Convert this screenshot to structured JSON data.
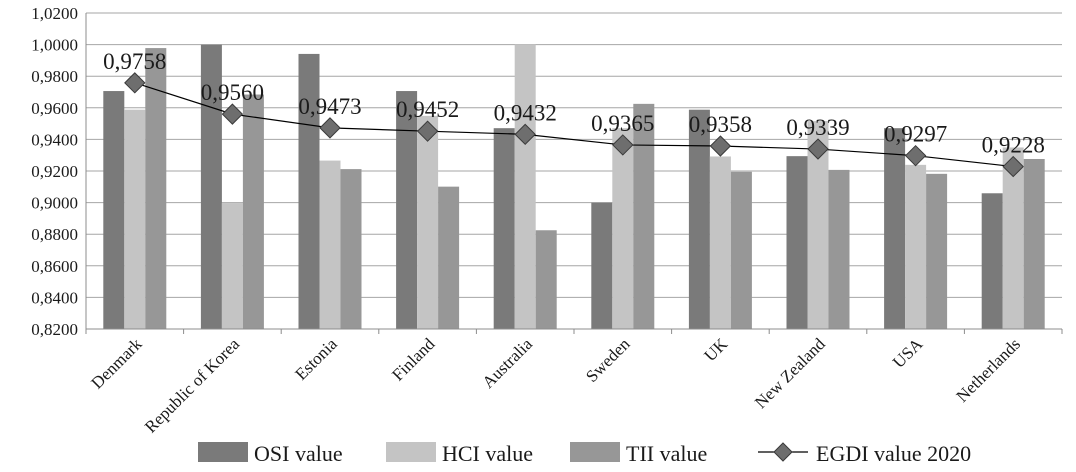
{
  "chart_data": {
    "type": "bar",
    "categories": [
      "Denmark",
      "Republic of Korea",
      "Estonia",
      "Finland",
      "Australia",
      "Sweden",
      "UK",
      "New Zealand",
      "USA",
      "Netherlands"
    ],
    "series": [
      {
        "name": "OSI value",
        "type": "bar",
        "color": "#7a7a7a",
        "values": [
          0.9706,
          1.0,
          0.9941,
          0.9706,
          0.9471,
          0.9,
          0.9588,
          0.9294,
          0.9471,
          0.9059
        ]
      },
      {
        "name": "HCI value",
        "type": "bar",
        "color": "#c4c4c4",
        "values": [
          0.9588,
          0.8997,
          0.9266,
          0.9549,
          1.0,
          0.9471,
          0.9292,
          0.9516,
          0.9239,
          0.9349
        ]
      },
      {
        "name": "TII value",
        "type": "bar",
        "color": "#979797",
        "values": [
          0.9978,
          0.9684,
          0.9212,
          0.9101,
          0.8825,
          0.9625,
          0.9195,
          0.9207,
          0.9182,
          0.9276
        ]
      },
      {
        "name": "EGDI value 2020",
        "type": "line",
        "color": "#6e6e6e",
        "values": [
          0.9758,
          0.956,
          0.9473,
          0.9452,
          0.9432,
          0.9365,
          0.9358,
          0.9339,
          0.9297,
          0.9228
        ]
      }
    ],
    "data_labels": [
      "0,9758",
      "0,9560",
      "0,9473",
      "0,9452",
      "0,9432",
      "0,9365",
      "0,9358",
      "0,9339",
      "0,9297",
      "0,9228"
    ],
    "ylim": [
      0.82,
      1.02
    ],
    "y_ticks": [
      "0,8200",
      "0,8400",
      "0,8600",
      "0,8800",
      "0,9000",
      "0,9200",
      "0,9400",
      "0,9600",
      "0,9800",
      "1,0000",
      "1,0200"
    ],
    "y_tick_values": [
      0.82,
      0.84,
      0.86,
      0.88,
      0.9,
      0.92,
      0.94,
      0.96,
      0.98,
      1.0,
      1.02
    ],
    "grid": true,
    "legend_position": "bottom"
  }
}
